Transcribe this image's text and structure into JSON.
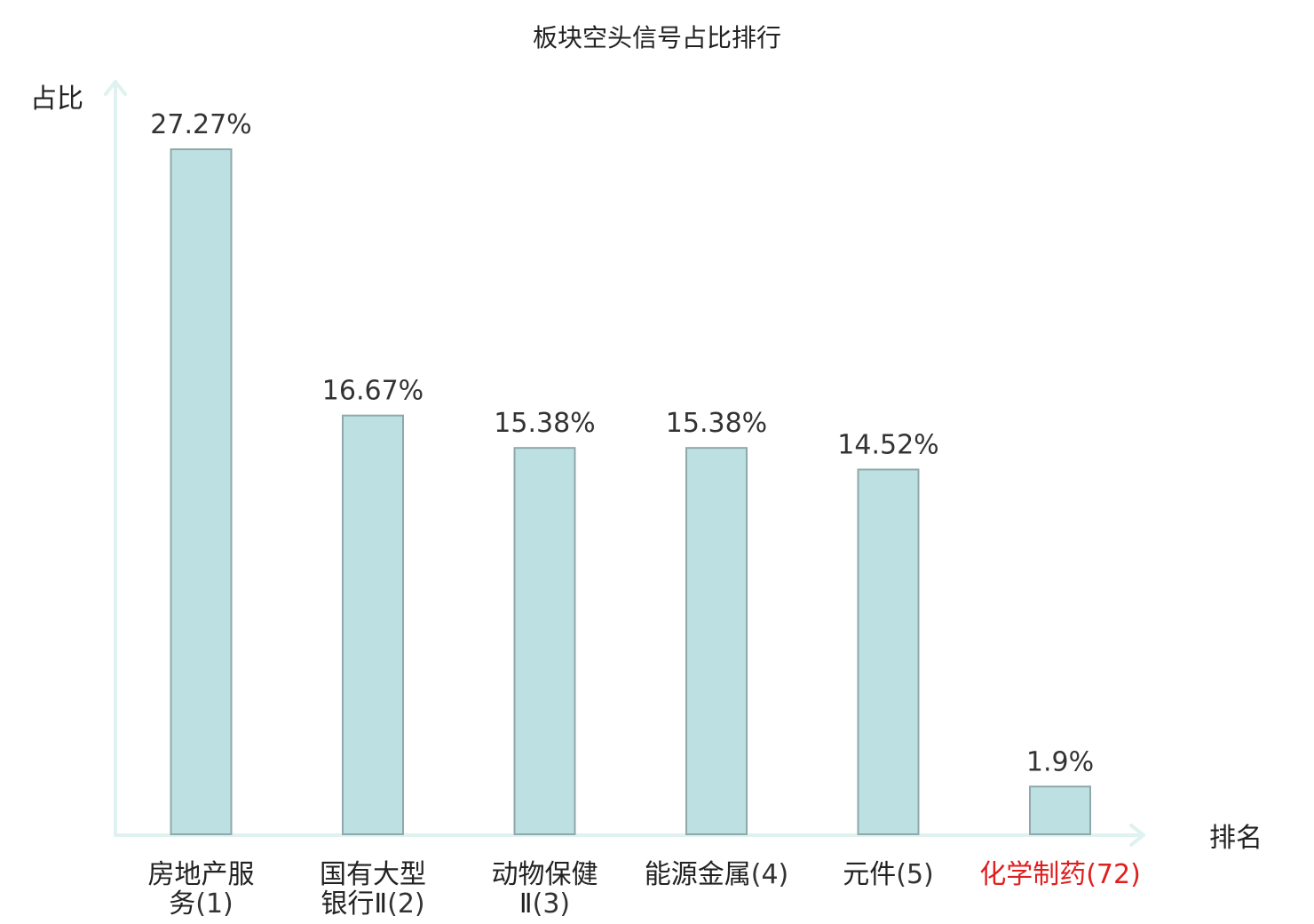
{
  "chart_data": {
    "type": "bar",
    "title": "板块空头信号占比排行",
    "ylabel": "占比",
    "xlabel": "排名",
    "ylim": [
      0,
      30
    ],
    "grid": false,
    "categories": [
      {
        "name_lines": [
          "房地产服",
          "务"
        ],
        "rank": "(1)",
        "highlight": false
      },
      {
        "name_lines": [
          "国有大型",
          "银行Ⅱ"
        ],
        "rank": "(2)",
        "highlight": false
      },
      {
        "name_lines": [
          "动物保健",
          "Ⅱ"
        ],
        "rank": "(3)",
        "highlight": false
      },
      {
        "name_lines": [
          "能源金属"
        ],
        "rank": "(4)",
        "highlight": false
      },
      {
        "name_lines": [
          "元件"
        ],
        "rank": "(5)",
        "highlight": false
      },
      {
        "name_lines": [
          "化学制药"
        ],
        "rank": "(72)",
        "highlight": true
      }
    ],
    "values": [
      27.27,
      16.67,
      15.38,
      15.38,
      14.52,
      1.9
    ],
    "value_labels": [
      "27.27%",
      "16.67%",
      "15.38%",
      "15.38%",
      "14.52%",
      "1.9%"
    ],
    "colors": {
      "bar_fill": "#bde0e3",
      "bar_stroke": "#8fa9aa",
      "axis": "#dff2ef",
      "highlight": "#e01e1e"
    }
  }
}
